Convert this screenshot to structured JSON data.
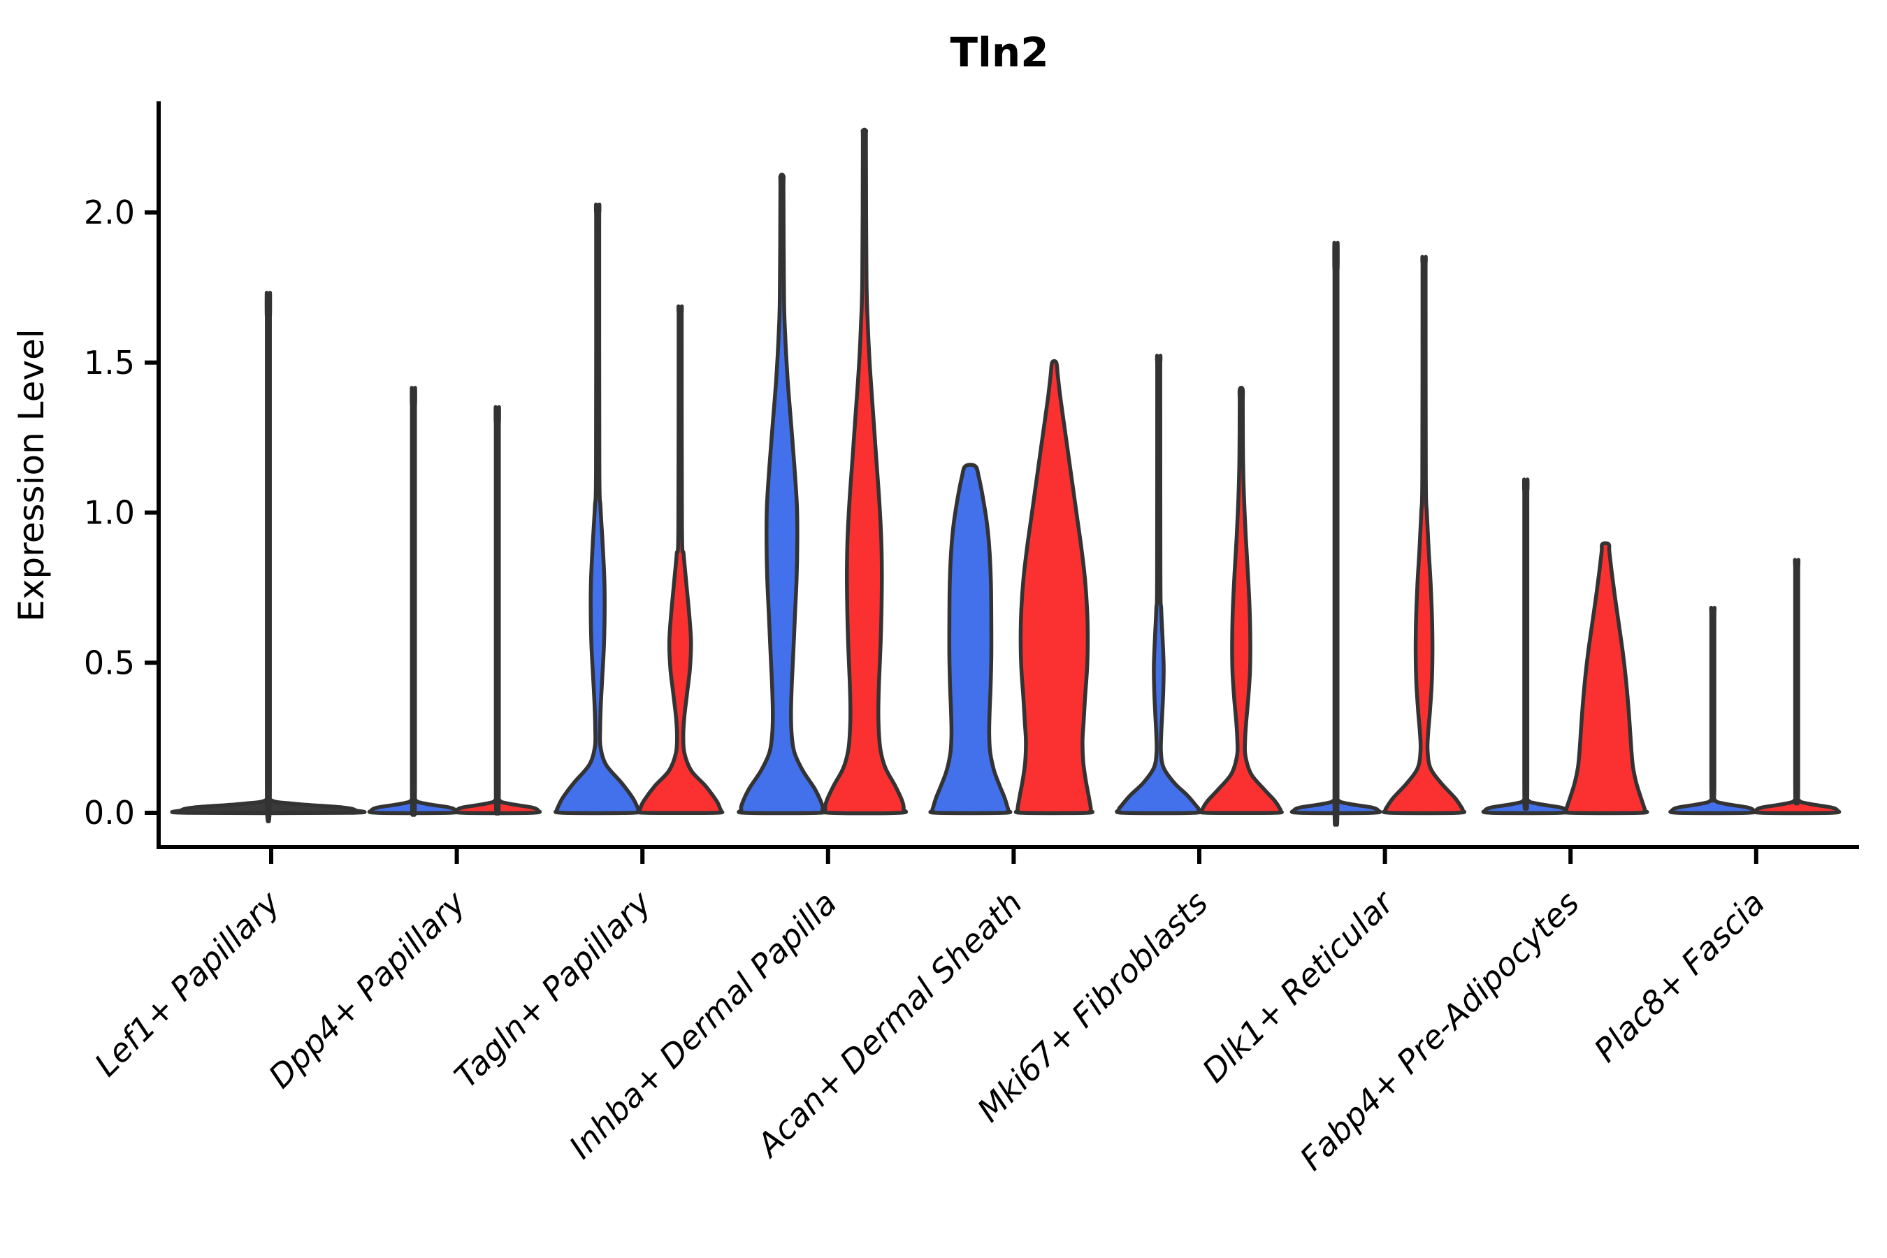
{
  "title": "Tln2",
  "y_axis": {
    "label": "Expression Level",
    "tick_labels": [
      "0.0",
      "0.5",
      "1.0",
      "1.5",
      "2.0"
    ],
    "tick_values": [
      0.0,
      0.5,
      1.0,
      1.5,
      2.0
    ]
  },
  "x_axis": {
    "categories": [
      "Lef1+ Papillary",
      "Dpp4+ Papillary",
      "Tagln+ Papillary",
      "Inhba+ Dermal Papilla",
      "Acan+ Dermal Sheath",
      "Mki67+ Fibroblasts",
      "Dlk1+ Reticular",
      "Fabp4+ Pre-Adipocytes",
      "Plac8+ Fascia"
    ]
  },
  "colors": {
    "split_blue": "#4370EB",
    "split_red": "#FB3131",
    "flat_fill": "#3a3a3a",
    "violin_outline": "#333333",
    "axis": "#000000"
  },
  "chart_data": {
    "type": "violin",
    "title": "Tln2",
    "ylabel": "Expression Level",
    "ylim": [
      -0.11,
      2.37
    ],
    "yticks": [
      0.0,
      0.5,
      1.0,
      1.5,
      2.0
    ],
    "grid": false,
    "legend": "none",
    "categories": [
      "Lef1+ Papillary",
      "Dpp4+ Papillary",
      "Tagln+ Papillary",
      "Inhba+ Dermal Papilla",
      "Acan+ Dermal Sheath",
      "Mki67+ Fibroblasts",
      "Dlk1+ Reticular",
      "Fabp4+ Pre-Adipocytes",
      "Plac8+ Fascia"
    ],
    "splits": [
      "blue",
      "red"
    ],
    "note": "split violin plot; most cells at 0 expression; profiles are [expression_level, half_width_px] read off the figure",
    "groups": [
      {
        "category": "Lef1+ Papillary",
        "violins": [
          {
            "split": "combined",
            "color_key": "flat_fill",
            "offset": -4,
            "max": 1.655,
            "shape": "flat_spike",
            "flat_halfwidth": 125
          }
        ]
      },
      {
        "category": "Dpp4+ Papillary",
        "violins": [
          {
            "split": "blue",
            "color_key": "split_blue",
            "offset": -62,
            "max": 1.36,
            "shape": "flat_spike",
            "flat_halfwidth": 60
          },
          {
            "split": "red",
            "color_key": "split_red",
            "offset": 58,
            "max": 1.3,
            "shape": "flat_spike",
            "flat_halfwidth": 58
          }
        ]
      },
      {
        "category": "Tagln+ Papillary",
        "violins": [
          {
            "split": "blue",
            "color_key": "split_blue",
            "offset": -64,
            "max": 2.0,
            "shape": "profile",
            "profile": [
              [
                2.0,
                2.2
              ],
              [
                1.95,
                2.2
              ],
              [
                1.15,
                2.4
              ],
              [
                1.02,
                4
              ],
              [
                0.9,
                7
              ],
              [
                0.78,
                9.5
              ],
              [
                0.68,
                10
              ],
              [
                0.56,
                9
              ],
              [
                0.45,
                6.5
              ],
              [
                0.36,
                4.5
              ],
              [
                0.28,
                3.5
              ],
              [
                0.22,
                4
              ],
              [
                0.16,
                12
              ],
              [
                0.1,
                34
              ],
              [
                0.05,
                50
              ],
              [
                0.018,
                57
              ],
              [
                0.008,
                58
              ],
              [
                0,
                50
              ]
            ]
          },
          {
            "split": "red",
            "color_key": "split_red",
            "offset": 54,
            "max": 1.67,
            "shape": "profile",
            "profile": [
              [
                1.67,
                2.2
              ],
              [
                1.62,
                2.2
              ],
              [
                0.95,
                2.6
              ],
              [
                0.86,
                5
              ],
              [
                0.76,
                9
              ],
              [
                0.66,
                13
              ],
              [
                0.57,
                15.5
              ],
              [
                0.48,
                14
              ],
              [
                0.4,
                10
              ],
              [
                0.32,
                6
              ],
              [
                0.26,
                4.5
              ],
              [
                0.2,
                6
              ],
              [
                0.14,
                16
              ],
              [
                0.09,
                36
              ],
              [
                0.04,
                52
              ],
              [
                0.015,
                57
              ],
              [
                0.006,
                58
              ],
              [
                0,
                50
              ]
            ]
          }
        ]
      },
      {
        "category": "Inhba+ Dermal Papilla",
        "violins": [
          {
            "split": "blue",
            "color_key": "split_blue",
            "offset": -66,
            "max": 2.12,
            "shape": "profile",
            "profile": [
              [
                2.12,
                2.2
              ],
              [
                2.07,
                2.2
              ],
              [
                1.72,
                3
              ],
              [
                1.6,
                4.5
              ],
              [
                1.45,
                8
              ],
              [
                1.3,
                13
              ],
              [
                1.15,
                18
              ],
              [
                1.02,
                21.5
              ],
              [
                0.9,
                22
              ],
              [
                0.78,
                21
              ],
              [
                0.65,
                18.5
              ],
              [
                0.52,
                16
              ],
              [
                0.42,
                14
              ],
              [
                0.33,
                13
              ],
              [
                0.26,
                14
              ],
              [
                0.2,
                18
              ],
              [
                0.14,
                30
              ],
              [
                0.08,
                47
              ],
              [
                0.03,
                57
              ],
              [
                0.01,
                58
              ],
              [
                0,
                52
              ]
            ]
          },
          {
            "split": "red",
            "color_key": "split_red",
            "offset": 52,
            "max": 2.27,
            "shape": "profile",
            "profile": [
              [
                2.27,
                2.2
              ],
              [
                2.22,
                2.2
              ],
              [
                1.78,
                3
              ],
              [
                1.62,
                5
              ],
              [
                1.48,
                8
              ],
              [
                1.33,
                12.5
              ],
              [
                1.18,
                17
              ],
              [
                1.05,
                21
              ],
              [
                0.92,
                24
              ],
              [
                0.8,
                25
              ],
              [
                0.68,
                24.5
              ],
              [
                0.55,
                23
              ],
              [
                0.44,
                21
              ],
              [
                0.35,
                20
              ],
              [
                0.28,
                20.5
              ],
              [
                0.21,
                23
              ],
              [
                0.15,
                30
              ],
              [
                0.09,
                44
              ],
              [
                0.04,
                54
              ],
              [
                0.012,
                56
              ],
              [
                0,
                50
              ]
            ]
          }
        ]
      },
      {
        "category": "Acan+ Dermal Sheath",
        "violins": [
          {
            "split": "blue",
            "color_key": "split_blue",
            "offset": -62,
            "max": 1.155,
            "shape": "profile",
            "profile": [
              [
                1.155,
                7
              ],
              [
                1.12,
                12
              ],
              [
                1.05,
                18
              ],
              [
                0.96,
                24
              ],
              [
                0.87,
                27.5
              ],
              [
                0.76,
                29.5
              ],
              [
                0.64,
                30
              ],
              [
                0.52,
                30
              ],
              [
                0.42,
                29
              ],
              [
                0.33,
                27.5
              ],
              [
                0.26,
                27
              ],
              [
                0.2,
                28.5
              ],
              [
                0.14,
                34
              ],
              [
                0.09,
                42
              ],
              [
                0.05,
                49
              ],
              [
                0.02,
                53
              ],
              [
                0.008,
                54
              ],
              [
                0,
                48
              ]
            ]
          },
          {
            "split": "red",
            "color_key": "split_red",
            "offset": 58,
            "max": 1.5,
            "shape": "profile",
            "profile": [
              [
                1.5,
                3
              ],
              [
                1.46,
                5
              ],
              [
                1.38,
                9
              ],
              [
                1.28,
                15
              ],
              [
                1.18,
                21
              ],
              [
                1.08,
                27
              ],
              [
                0.98,
                33
              ],
              [
                0.88,
                39
              ],
              [
                0.78,
                44
              ],
              [
                0.68,
                47
              ],
              [
                0.58,
                48
              ],
              [
                0.48,
                47
              ],
              [
                0.38,
                44
              ],
              [
                0.3,
                42
              ],
              [
                0.24,
                40.5
              ],
              [
                0.17,
                41.5
              ],
              [
                0.11,
                45
              ],
              [
                0.06,
                49
              ],
              [
                0.02,
                52
              ],
              [
                0.008,
                52
              ],
              [
                0,
                46
              ]
            ]
          }
        ]
      },
      {
        "category": "Mki67+ Fibroblasts",
        "violins": [
          {
            "split": "blue",
            "color_key": "split_blue",
            "offset": -58,
            "max": 1.505,
            "shape": "profile",
            "profile": [
              [
                1.505,
                2.2
              ],
              [
                1.455,
                2.2
              ],
              [
                0.78,
                2.4
              ],
              [
                0.68,
                3.5
              ],
              [
                0.58,
                5.5
              ],
              [
                0.49,
                7
              ],
              [
                0.41,
                6.5
              ],
              [
                0.33,
                5
              ],
              [
                0.26,
                3.5
              ],
              [
                0.2,
                3.2
              ],
              [
                0.15,
                7
              ],
              [
                0.1,
                22
              ],
              [
                0.06,
                40
              ],
              [
                0.025,
                53
              ],
              [
                0.01,
                57
              ],
              [
                0,
                50
              ]
            ]
          },
          {
            "split": "red",
            "color_key": "split_red",
            "offset": 60,
            "max": 1.41,
            "shape": "profile",
            "profile": [
              [
                1.41,
                2.2
              ],
              [
                1.36,
                2.2
              ],
              [
                1.18,
                2.6
              ],
              [
                1.05,
                4
              ],
              [
                0.92,
                6.5
              ],
              [
                0.8,
                9.5
              ],
              [
                0.68,
                12
              ],
              [
                0.57,
                13
              ],
              [
                0.47,
                12.5
              ],
              [
                0.38,
                10
              ],
              [
                0.3,
                7
              ],
              [
                0.24,
                5.5
              ],
              [
                0.19,
                6
              ],
              [
                0.13,
                14
              ],
              [
                0.08,
                32
              ],
              [
                0.04,
                48
              ],
              [
                0.015,
                55
              ],
              [
                0.006,
                56
              ],
              [
                0,
                48
              ]
            ]
          }
        ]
      },
      {
        "category": "Dlk1+ Reticular",
        "violins": [
          {
            "split": "blue",
            "color_key": "split_blue",
            "offset": -70,
            "max": 1.81,
            "shape": "flat_spike",
            "flat_halfwidth": 60
          },
          {
            "split": "red",
            "color_key": "split_red",
            "offset": 56,
            "max": 1.835,
            "shape": "profile",
            "profile": [
              [
                1.835,
                2.2
              ],
              [
                1.785,
                2.2
              ],
              [
                1.12,
                2.5
              ],
              [
                1.0,
                4
              ],
              [
                0.88,
                6.5
              ],
              [
                0.76,
                9.5
              ],
              [
                0.64,
                11.5
              ],
              [
                0.53,
                12
              ],
              [
                0.43,
                11
              ],
              [
                0.34,
                8.5
              ],
              [
                0.27,
                6
              ],
              [
                0.21,
                5
              ],
              [
                0.15,
                9
              ],
              [
                0.1,
                24
              ],
              [
                0.05,
                44
              ],
              [
                0.02,
                53
              ],
              [
                0.008,
                55
              ],
              [
                0,
                48
              ]
            ]
          }
        ]
      },
      {
        "category": "Fabp4+ Pre-Adipocytes",
        "violins": [
          {
            "split": "blue",
            "color_key": "split_blue",
            "offset": -64,
            "max": 1.075,
            "shape": "flat_spike",
            "flat_halfwidth": 58
          },
          {
            "split": "red",
            "color_key": "split_red",
            "offset": 50,
            "max": 0.895,
            "shape": "profile",
            "profile": [
              [
                0.895,
                4.5
              ],
              [
                0.87,
                5.5
              ],
              [
                0.8,
                9
              ],
              [
                0.72,
                13.5
              ],
              [
                0.63,
                19
              ],
              [
                0.54,
                24.5
              ],
              [
                0.45,
                29
              ],
              [
                0.36,
                32.5
              ],
              [
                0.28,
                35
              ],
              [
                0.21,
                37
              ],
              [
                0.15,
                39.5
              ],
              [
                0.1,
                44
              ],
              [
                0.055,
                50
              ],
              [
                0.02,
                55
              ],
              [
                0.008,
                56
              ],
              [
                0,
                50
              ]
            ]
          }
        ]
      },
      {
        "category": "Plac8+ Fascia",
        "violins": [
          {
            "split": "blue",
            "color_key": "split_blue",
            "offset": -62,
            "max": 0.675,
            "shape": "flat_spike",
            "flat_halfwidth": 58
          },
          {
            "split": "red",
            "color_key": "split_red",
            "offset": 58,
            "max": 0.825,
            "shape": "flat_spike",
            "flat_halfwidth": 58
          }
        ]
      }
    ]
  }
}
